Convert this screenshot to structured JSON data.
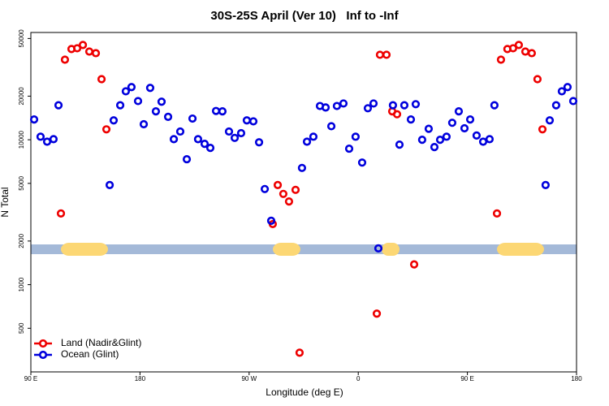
{
  "chart_data": {
    "type": "scatter",
    "title": "30S-25S April (Ver 10)   Inf to -Inf",
    "xlabel": "Longitude (deg E)",
    "ylabel": "N Total",
    "xlim": [
      90,
      540
    ],
    "xticks": [
      {
        "value": 90,
        "label": "90 E"
      },
      {
        "value": 180,
        "label": "180"
      },
      {
        "value": 270,
        "label": "90 W"
      },
      {
        "value": 360,
        "label": "0"
      },
      {
        "value": 450,
        "label": "90 E"
      },
      {
        "value": 540,
        "label": "180"
      }
    ],
    "ylim": [
      250,
      55000
    ],
    "yticks": [
      500,
      1000,
      2000,
      5000,
      10000,
      20000,
      50000
    ],
    "log_y": true,
    "legend": "bottom-left",
    "series": [
      {
        "name": "Land (Nadir&Glint)",
        "color": "#ee0000",
        "x": [
          114.8,
          118.1,
          123.5,
          128.2,
          132.9,
          138.2,
          143.6,
          148.3,
          152.3,
          289.5,
          293.6,
          298.2,
          302.9,
          308.3,
          311.6,
          375.3,
          377.9,
          383.3,
          388.0,
          392.0,
          406.1,
          474.4,
          477.7,
          483.0,
          487.7,
          492.4,
          497.8,
          503.1,
          507.8,
          511.9
        ],
        "values": [
          3100,
          35700,
          42300,
          42800,
          45100,
          40600,
          39600,
          26200,
          11800,
          2620,
          4870,
          4230,
          3750,
          4510,
          339,
          631,
          38600,
          38600,
          15700,
          15000,
          1380,
          3100,
          35700,
          42300,
          42800,
          45100,
          40600,
          39600,
          26200,
          11800
        ]
      },
      {
        "name": "Ocean (Glint)",
        "color": "#0000dd",
        "x": [
          92.7,
          98.0,
          103.4,
          108.7,
          112.8,
          155.0,
          158.3,
          163.7,
          168.3,
          173.0,
          178.4,
          183.1,
          188.4,
          193.1,
          197.8,
          203.2,
          207.9,
          213.2,
          218.6,
          223.3,
          227.9,
          233.3,
          238.0,
          242.7,
          248.0,
          253.4,
          258.1,
          263.4,
          268.1,
          273.5,
          278.2,
          282.9,
          288.2,
          313.6,
          317.7,
          323.0,
          328.4,
          333.1,
          337.8,
          342.4,
          347.8,
          352.5,
          357.8,
          363.2,
          367.9,
          372.6,
          376.6,
          388.6,
          394.0,
          398.0,
          403.4,
          407.4,
          412.7,
          418.1,
          422.8,
          427.5,
          432.8,
          437.5,
          442.9,
          447.6,
          452.3,
          457.6,
          463.0,
          468.3,
          472.3,
          514.5,
          517.9,
          523.2,
          527.9,
          532.6,
          537.3
        ],
        "values": [
          13800,
          10500,
          9700,
          10100,
          17300,
          4870,
          13600,
          17300,
          21600,
          23100,
          18500,
          12800,
          22800,
          15700,
          18300,
          14400,
          10100,
          11400,
          7340,
          14000,
          10100,
          9370,
          8790,
          15800,
          15700,
          11400,
          10300,
          11100,
          13600,
          13400,
          9600,
          4570,
          2760,
          6390,
          9700,
          10500,
          17100,
          16700,
          12400,
          17100,
          17800,
          8680,
          10500,
          6960,
          16500,
          17800,
          1780,
          17300,
          9250,
          17300,
          13800,
          17600,
          10000,
          11900,
          8900,
          10000,
          10500,
          13100,
          15700,
          12000,
          13800,
          10700,
          9700,
          10100,
          17300,
          4870,
          13600,
          17300,
          21600,
          23100,
          18500
        ]
      }
    ]
  }
}
